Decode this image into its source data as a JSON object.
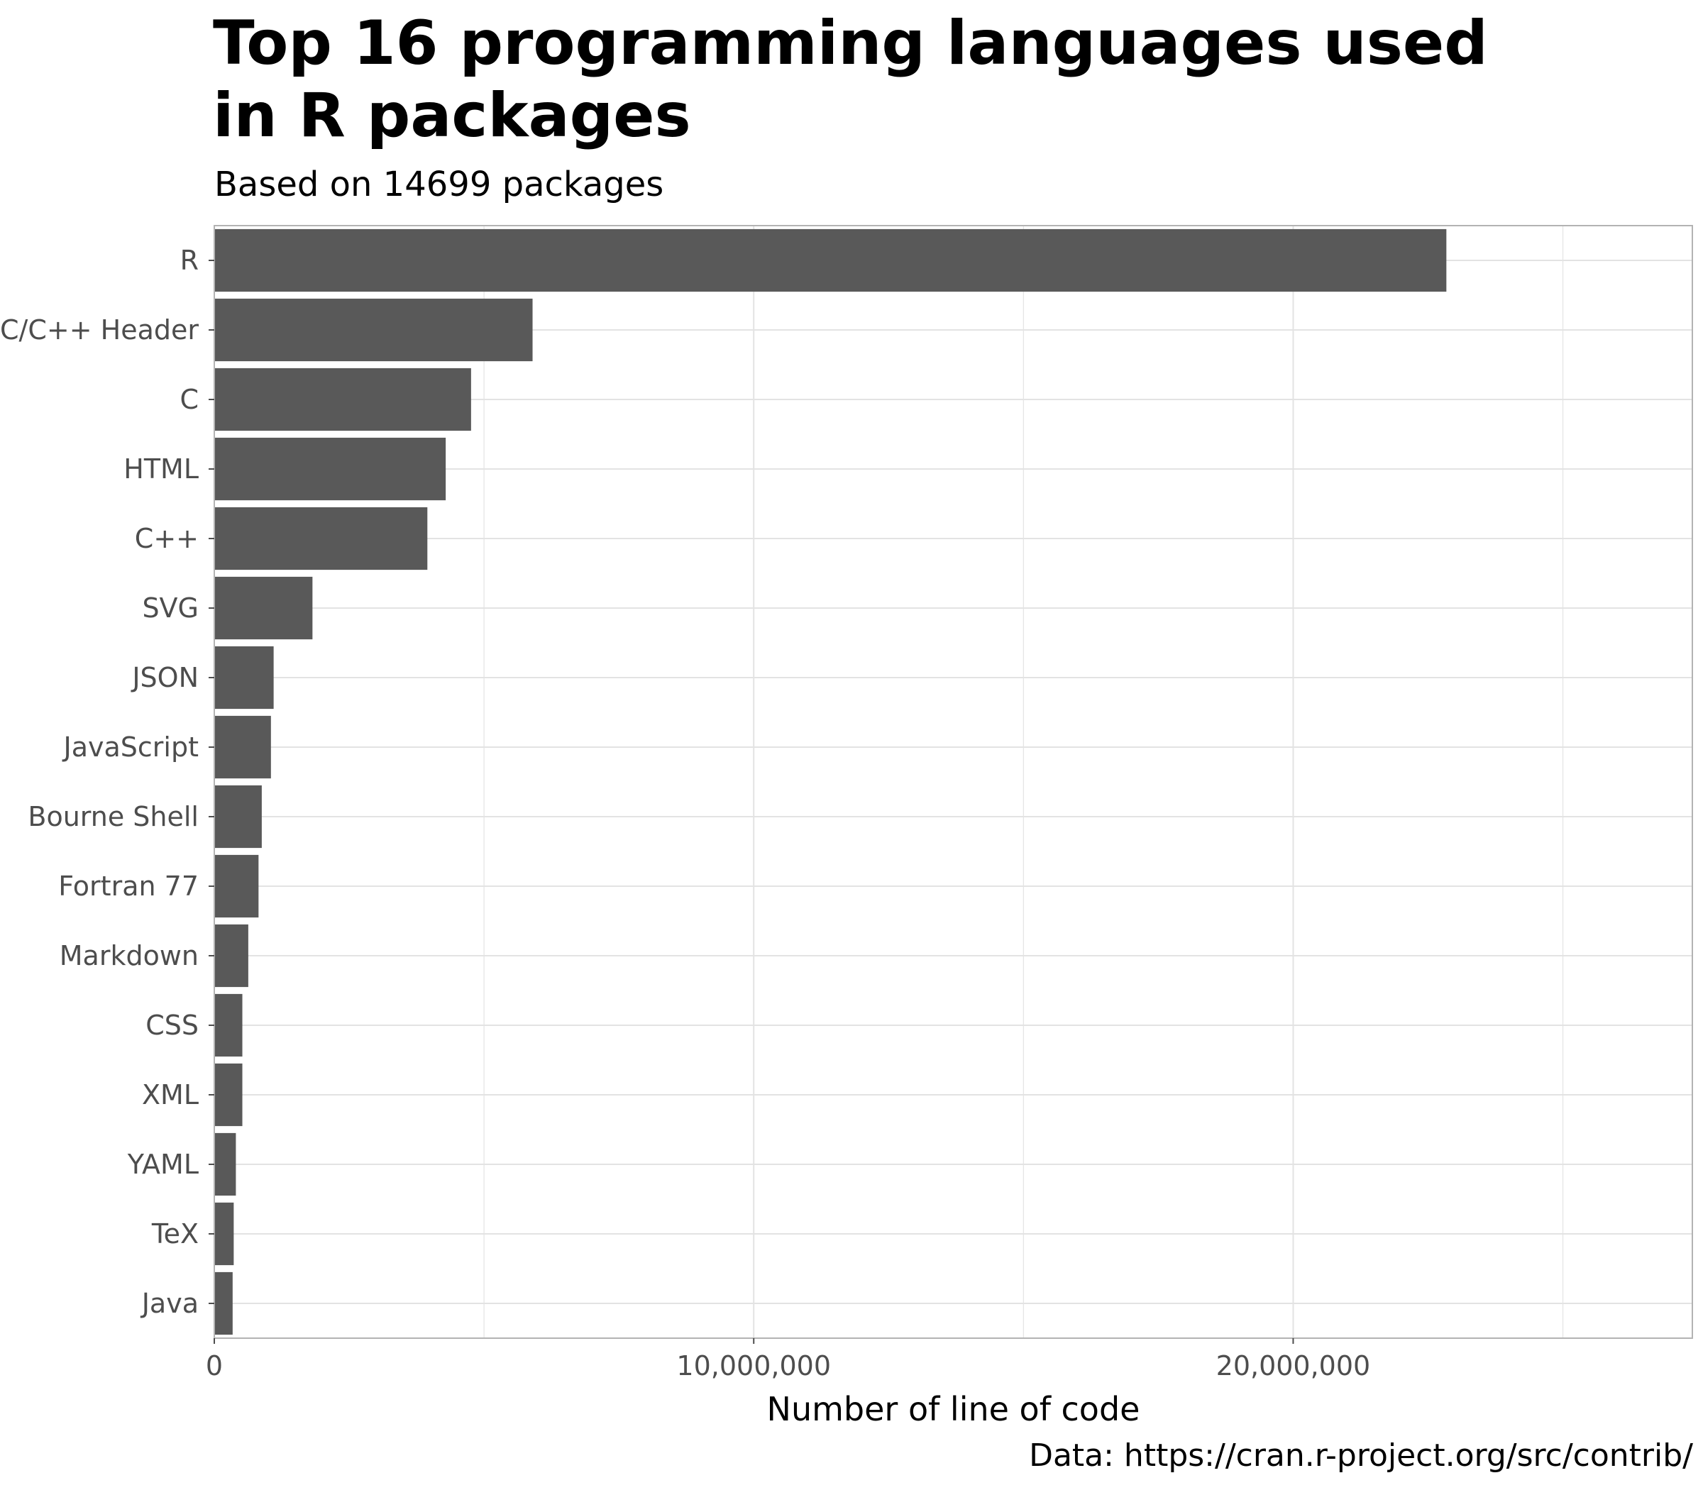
{
  "chart_data": {
    "type": "bar",
    "orientation": "horizontal",
    "title": "Top 16 programming languages used in R packages",
    "subtitle": "Based on 14699 packages",
    "xlabel": "Number of line of code",
    "ylabel": "",
    "caption": "Data: https://cran.r-project.org/src/contrib/",
    "categories": [
      "R",
      "C/C++ Header",
      "C",
      "HTML",
      "C++",
      "SVG",
      "JSON",
      "JavaScript",
      "Bourne Shell",
      "Fortran 77",
      "Markdown",
      "CSS",
      "XML",
      "YAML",
      "TeX",
      "Java"
    ],
    "values": [
      22840000,
      5900000,
      4760000,
      4290000,
      3950000,
      1820000,
      1100000,
      1050000,
      880000,
      820000,
      630000,
      520000,
      520000,
      400000,
      360000,
      340000
    ],
    "xlim": [
      0,
      27400000
    ],
    "x_ticks": [
      0,
      10000000,
      20000000
    ],
    "x_tick_labels": [
      "0",
      "10,000,000",
      "20,000,000"
    ],
    "grid": true,
    "bar_color": "#595959",
    "grid_color": "#e3e3e3",
    "panel_border_color": "#b3b3b3"
  }
}
